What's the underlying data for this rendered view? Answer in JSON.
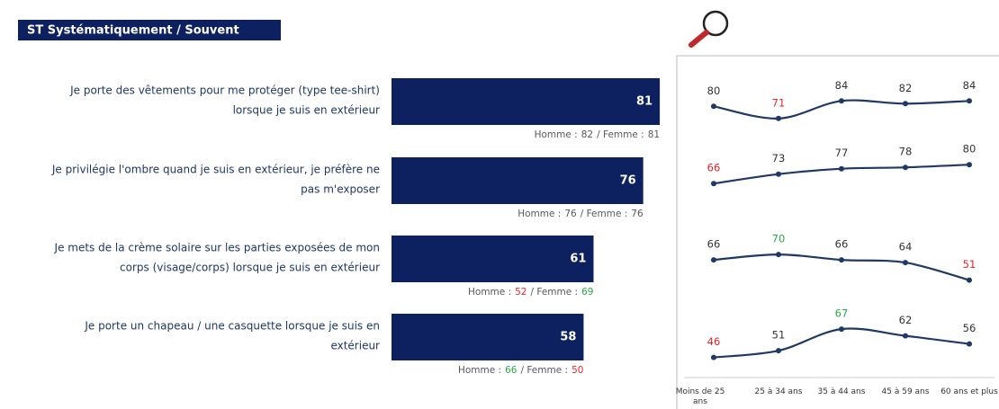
{
  "chart_data": [
    {
      "type": "bar",
      "title": "ST Systématiquement / Souvent",
      "categories": [
        [
          "Je porte des vêtements pour me protéger (type tee-shirt)",
          "lorsque je suis en extérieur"
        ],
        [
          "Je privilégie l'ombre quand je suis en extérieur, je préfère ne",
          "pas m'exposer"
        ],
        [
          "Je mets de la crème solaire sur les parties exposées de mon",
          "corps (visage/corps) lorsque je suis en extérieur"
        ],
        [
          "Je porte un chapeau / une casquette lorsque je suis en",
          "extérieur"
        ]
      ],
      "values": [
        81,
        76,
        61,
        58
      ],
      "color": "#0d2161",
      "gender_labels": [
        "Homme :",
        "/ Femme :"
      ],
      "homme": [
        82,
        76,
        52,
        66
      ],
      "homme_colors": [
        "#595959",
        "#595959",
        "#e8262b",
        "#2ea84a"
      ],
      "femme": [
        81,
        76,
        69,
        50
      ],
      "femme_colors": [
        "#595959",
        "#595959",
        "#2ea84a",
        "#e8262b"
      ]
    },
    {
      "type": "line",
      "color": "#1f3864",
      "categories": [
        "Moins de 25 ans",
        "25 à 34 ans",
        "35 à 44 ans",
        "45 à 59 ans",
        "60 ans et plus"
      ],
      "series": [
        {
          "values": [
            80,
            71,
            84,
            82,
            84
          ],
          "value_colors": [
            "#333333",
            "#e8262b",
            "#333333",
            "#333333",
            "#333333"
          ]
        },
        {
          "values": [
            66,
            73,
            77,
            78,
            80
          ],
          "value_colors": [
            "#e8262b",
            "#333333",
            "#333333",
            "#333333",
            "#333333"
          ]
        },
        {
          "values": [
            66,
            70,
            66,
            64,
            51
          ],
          "value_colors": [
            "#333333",
            "#2ea84a",
            "#333333",
            "#333333",
            "#e8262b"
          ]
        },
        {
          "values": [
            46,
            51,
            67,
            62,
            56
          ],
          "value_colors": [
            "#e8262b",
            "#333333",
            "#2ea84a",
            "#333333",
            "#333333"
          ]
        }
      ]
    }
  ]
}
